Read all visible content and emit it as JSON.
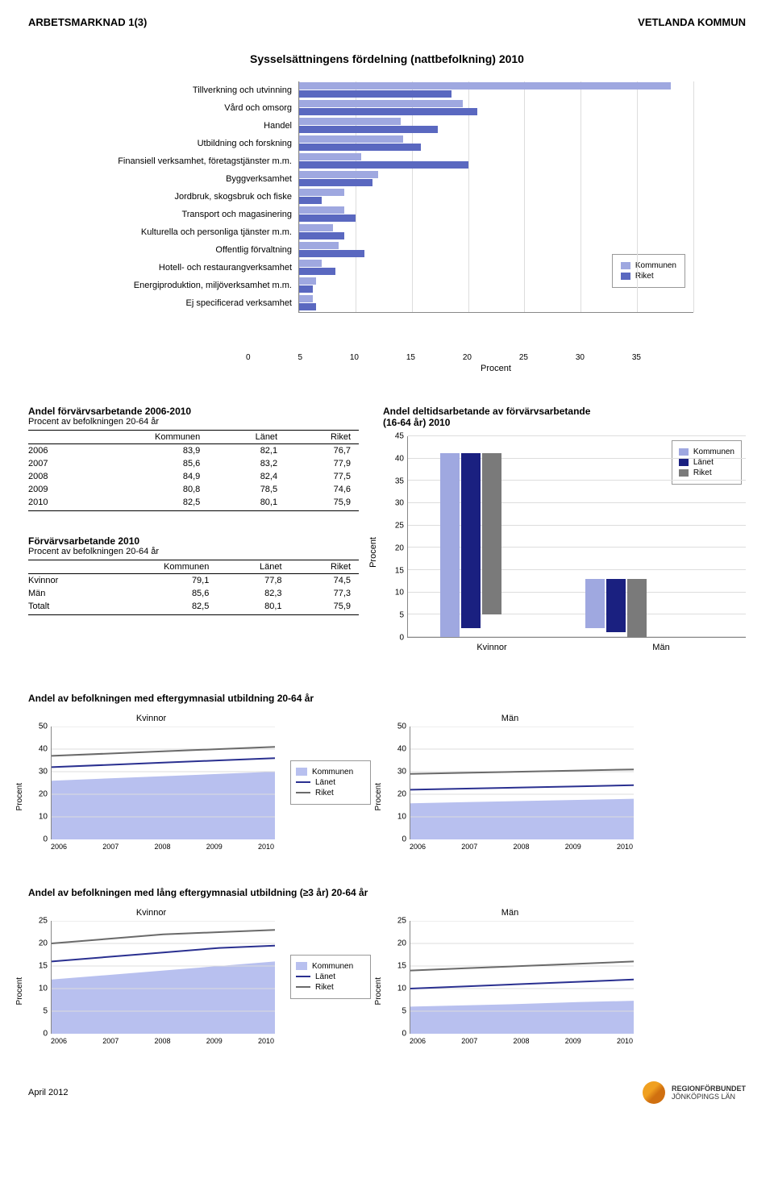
{
  "header": {
    "left": "ARBETSMARKNAD 1(3)",
    "right": "VETLANDA KOMMUN"
  },
  "main_title": "Sysselsättningens fördelning (nattbefolkning) 2010",
  "hbar": {
    "type": "bar-horizontal",
    "xmax": 35,
    "xtick_step": 5,
    "xlabel": "Procent",
    "colors": {
      "kommunen": "#9fa8e0",
      "riket": "#5a68c0"
    },
    "legend": [
      "Kommunen",
      "Riket"
    ],
    "categories": [
      {
        "label": "Tillverkning och utvinning",
        "k": 33.0,
        "r": 13.5
      },
      {
        "label": "Vård och omsorg",
        "k": 14.5,
        "r": 15.8
      },
      {
        "label": "Handel",
        "k": 9.0,
        "r": 12.3
      },
      {
        "label": "Utbildning och forskning",
        "k": 9.2,
        "r": 10.8
      },
      {
        "label": "Finansiell verksamhet, företagstjänster m.m.",
        "k": 5.5,
        "r": 15.0
      },
      {
        "label": "Byggverksamhet",
        "k": 7.0,
        "r": 6.5
      },
      {
        "label": "Jordbruk, skogsbruk och fiske",
        "k": 4.0,
        "r": 2.0
      },
      {
        "label": "Transport och magasinering",
        "k": 4.0,
        "r": 5.0
      },
      {
        "label": "Kulturella och personliga tjänster m.m.",
        "k": 3.0,
        "r": 4.0
      },
      {
        "label": "Offentlig förvaltning",
        "k": 3.5,
        "r": 5.8
      },
      {
        "label": "Hotell- och restaurangverksamhet",
        "k": 2.0,
        "r": 3.2
      },
      {
        "label": "Energiproduktion, miljöverksamhet m.m.",
        "k": 1.5,
        "r": 1.2
      },
      {
        "label": "Ej specificerad verksamhet",
        "k": 1.2,
        "r": 1.5
      }
    ]
  },
  "table1": {
    "title": "Andel förvärvsarbetande 2006-2010",
    "subtitle": "Procent av befolkningen 20-64 år",
    "cols": [
      "",
      "Kommunen",
      "Länet",
      "Riket"
    ],
    "rows": [
      [
        "2006",
        "83,9",
        "82,1",
        "76,7"
      ],
      [
        "2007",
        "85,6",
        "83,2",
        "77,9"
      ],
      [
        "2008",
        "84,9",
        "82,4",
        "77,5"
      ],
      [
        "2009",
        "80,8",
        "78,5",
        "74,6"
      ],
      [
        "2010",
        "82,5",
        "80,1",
        "75,9"
      ]
    ]
  },
  "table2": {
    "title": "Förvärvsarbetande 2010",
    "subtitle": "Procent av befolkningen 20-64 år",
    "cols": [
      "",
      "Kommunen",
      "Länet",
      "Riket"
    ],
    "rows": [
      [
        "Kvinnor",
        "79,1",
        "77,8",
        "74,5"
      ],
      [
        "Män",
        "85,6",
        "82,3",
        "77,3"
      ],
      [
        "Totalt",
        "82,5",
        "80,1",
        "75,9"
      ]
    ]
  },
  "gbar": {
    "title": "Andel deltidsarbetande av förvärvsarbetande",
    "subtitle": "(16-64 år) 2010",
    "ymax": 45,
    "ytick_step": 5,
    "ylabel": "Procent",
    "colors": {
      "kommunen": "#9fa8e0",
      "lanet": "#1a2080",
      "riket": "#7a7a7a"
    },
    "legend": [
      "Kommunen",
      "Länet",
      "Riket"
    ],
    "groups": [
      {
        "label": "Kvinnor",
        "values": {
          "kommunen": 41,
          "lanet": 39,
          "riket": 36
        }
      },
      {
        "label": "Män",
        "values": {
          "kommunen": 11,
          "lanet": 12,
          "riket": 13
        }
      }
    ]
  },
  "edu1": {
    "title": "Andel av befolkningen med eftergymnasial utbildning 20-64 år",
    "ymax": 50,
    "ytick_step": 10,
    "ylabel": "Procent",
    "years": [
      "2006",
      "2007",
      "2008",
      "2009",
      "2010"
    ],
    "legend": [
      "Kommunen",
      "Länet",
      "Riket"
    ],
    "colors": {
      "kommunen_fill": "#b8c0ef",
      "lanet": "#2a3090",
      "riket": "#6a6a6a"
    },
    "panels": [
      {
        "label": "Kvinnor",
        "kommunen": [
          26,
          27,
          28,
          29,
          30
        ],
        "lanet": [
          32,
          33,
          34,
          35,
          36
        ],
        "riket": [
          37,
          38,
          39,
          40,
          41
        ]
      },
      {
        "label": "Män",
        "kommunen": [
          16,
          16.5,
          17,
          17.5,
          18
        ],
        "lanet": [
          22,
          22.5,
          23,
          23.5,
          24
        ],
        "riket": [
          29,
          29.5,
          30,
          30.5,
          31
        ]
      }
    ]
  },
  "edu2": {
    "title": "Andel av befolkningen med lång eftergymnasial utbildning (≥3 år) 20-64 år",
    "ymax": 25,
    "ytick_step": 5,
    "ylabel": "Procent",
    "years": [
      "2006",
      "2007",
      "2008",
      "2009",
      "2010"
    ],
    "legend": [
      "Kommunen",
      "Länet",
      "Riket"
    ],
    "colors": {
      "kommunen_fill": "#b8c0ef",
      "lanet": "#2a3090",
      "riket": "#6a6a6a"
    },
    "panels": [
      {
        "label": "Kvinnor",
        "kommunen": [
          12,
          13,
          14,
          15,
          16
        ],
        "lanet": [
          16,
          17,
          18,
          19,
          19.5
        ],
        "riket": [
          20,
          21,
          22,
          22.5,
          23
        ]
      },
      {
        "label": "Män",
        "kommunen": [
          6,
          6.3,
          6.6,
          7,
          7.3
        ],
        "lanet": [
          10,
          10.5,
          11,
          11.5,
          12
        ],
        "riket": [
          14,
          14.5,
          15,
          15.5,
          16
        ]
      }
    ]
  },
  "footer": {
    "date": "April 2012",
    "org1": "REGIONFÖRBUNDET",
    "org2": "JÖNKÖPINGS LÄN"
  }
}
